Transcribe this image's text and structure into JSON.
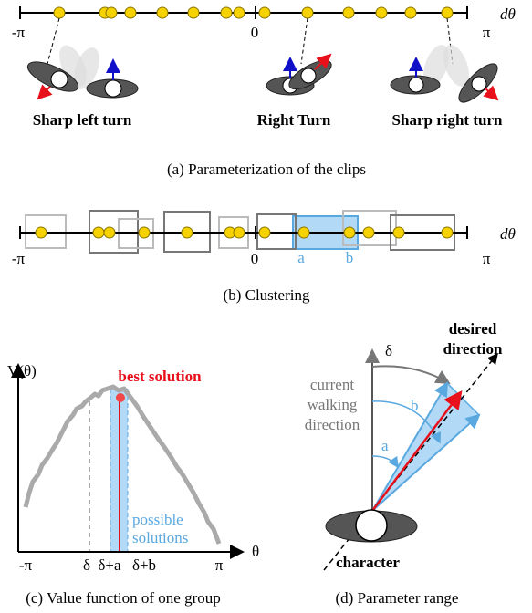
{
  "panel_a": {
    "axis": {
      "min": "-π",
      "zero": "0",
      "max": "π",
      "var": "dθ"
    },
    "labels": [
      "Sharp left turn",
      "Right Turn",
      "Sharp right turn"
    ],
    "caption": "(a) Parameterization of the clips"
  },
  "panel_b": {
    "axis": {
      "min": "-π",
      "zero": "0",
      "max": "π",
      "var": "dθ"
    },
    "range_labels": [
      "a",
      "b"
    ],
    "caption": "(b) Clustering"
  },
  "panel_c": {
    "y_label": "V(θ)",
    "x_label": "θ",
    "best": "best solution",
    "possible": [
      "possible",
      "solutions"
    ],
    "x_ticks": [
      "-π",
      "δ",
      "δ+a",
      "δ+b",
      "π"
    ],
    "caption": "(c) Value function of one group"
  },
  "panel_d": {
    "delta": "δ",
    "desired": [
      "desired",
      "direction"
    ],
    "current": [
      "current",
      "walking",
      "direction"
    ],
    "angles": [
      "b",
      "a"
    ],
    "character": "character",
    "caption": "(d) Parameter range"
  }
}
